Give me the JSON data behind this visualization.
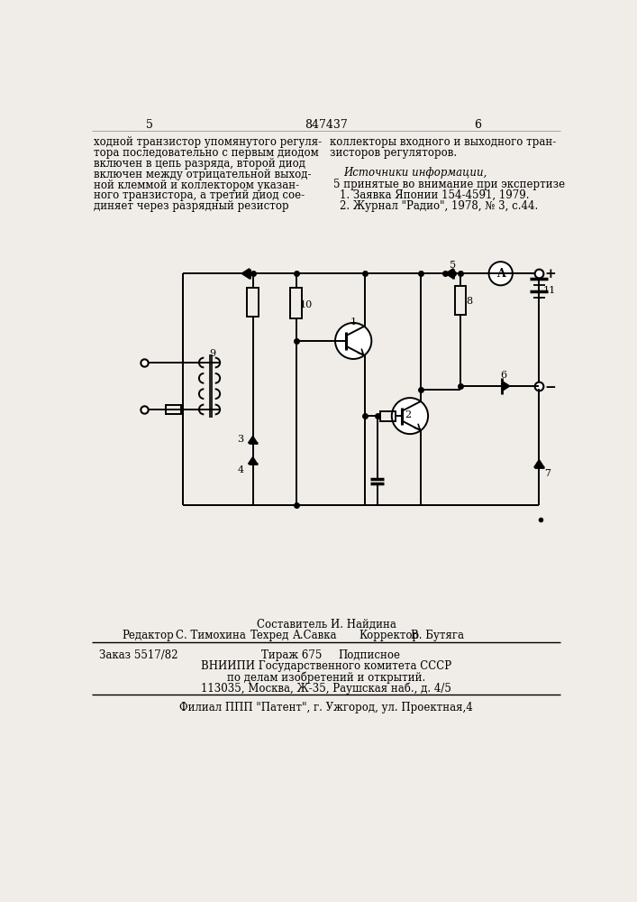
{
  "bg_color": "#f0ede8",
  "title_number": "847437",
  "col_left": "5",
  "col_right": "6",
  "left_text_lines": [
    "ходной транзистор упомянутого регуля-",
    "тора последовательно с первым диодом",
    "включен в цепь разряда, второй диод",
    "включен между отрицательной выход-",
    "ной клеммой и коллектором указан-",
    "ного транзистора, а третий диод сое-",
    "диняет через разрядный резистор"
  ],
  "right_text_lines": [
    "коллекторы входного и выходного тран-",
    "зисторов регуляторов."
  ],
  "sources_header": "Источники информации,",
  "sources_num": "5",
  "sources_intro": "принятые во внимание при экспертизе",
  "source1": "1. Заявка Японии 154-4591, 1979.",
  "source2": "2. Журнал \"Радио\", 1978, № 3, с.44.",
  "composer_line": "Составитель И. Найдина",
  "editor_label": "Редактор",
  "editor_name": "С. Тимохина",
  "techred_label": "Техред",
  "techred_name": "А.Савка",
  "corrector_label": "Корректор",
  "corrector_name": "В. Бутяга",
  "order_text": "Заказ 5517/82",
  "tirazh_text": "Тираж 675",
  "podpisnoe_text": "Подписное",
  "vnipi_line1": "ВНИИПИ Государственного комитета СССР",
  "vnipi_line2": "по делам изобретений и открытий.",
  "vnipi_line3": "113035, Москва, Ж-35, Раушская наб., д. 4/5",
  "filial_line": "Филиал ППП \"Патент\", г. Ужгород, ул. Проектная,4"
}
